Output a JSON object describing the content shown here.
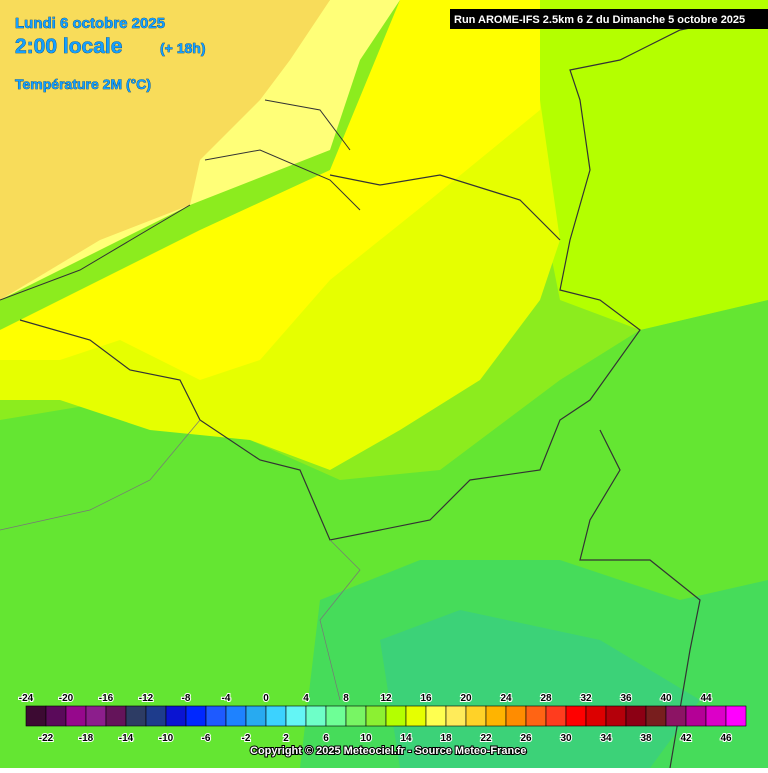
{
  "header": {
    "date": "Lundi 6 octobre 2025",
    "time": "2:00 locale",
    "lead": "(+ 18h)",
    "parameter": "Température 2M (°C)",
    "run": "Run AROME-IFS 2.5km 6 Z du Dimanche 5 octobre 2025"
  },
  "legend": {
    "ticks": [
      -24,
      -22,
      -20,
      -18,
      -16,
      -14,
      -12,
      -10,
      -8,
      -6,
      -4,
      -2,
      0,
      2,
      4,
      6,
      8,
      10,
      12,
      14,
      16,
      18,
      20,
      22,
      24,
      26,
      28,
      30,
      32,
      34,
      36,
      38,
      40,
      42,
      44,
      46
    ],
    "colors": [
      "#3c0a32",
      "#5a0a5a",
      "#96088c",
      "#8c1e8c",
      "#64145a",
      "#2d3c64",
      "#1e3c8c",
      "#0a14d2",
      "#0028ff",
      "#1e5aff",
      "#1e82ff",
      "#28aaf0",
      "#3cd2ff",
      "#64f5f5",
      "#6effc8",
      "#6eff96",
      "#78f564",
      "#8cf032",
      "#b4ff00",
      "#e6ff00",
      "#ffff50",
      "#ffeb5a",
      "#ffd228",
      "#ffb400",
      "#ff8c00",
      "#ff6414",
      "#ff3c1e",
      "#ff0000",
      "#dc0000",
      "#b4000a",
      "#8c0014",
      "#781e1e",
      "#8c1464",
      "#b40096",
      "#dc00c8",
      "#ff00ff"
    ]
  },
  "footer": {
    "copyright": "Copyright © 2025 Meteociel.fr - Source Meteo-France"
  }
}
